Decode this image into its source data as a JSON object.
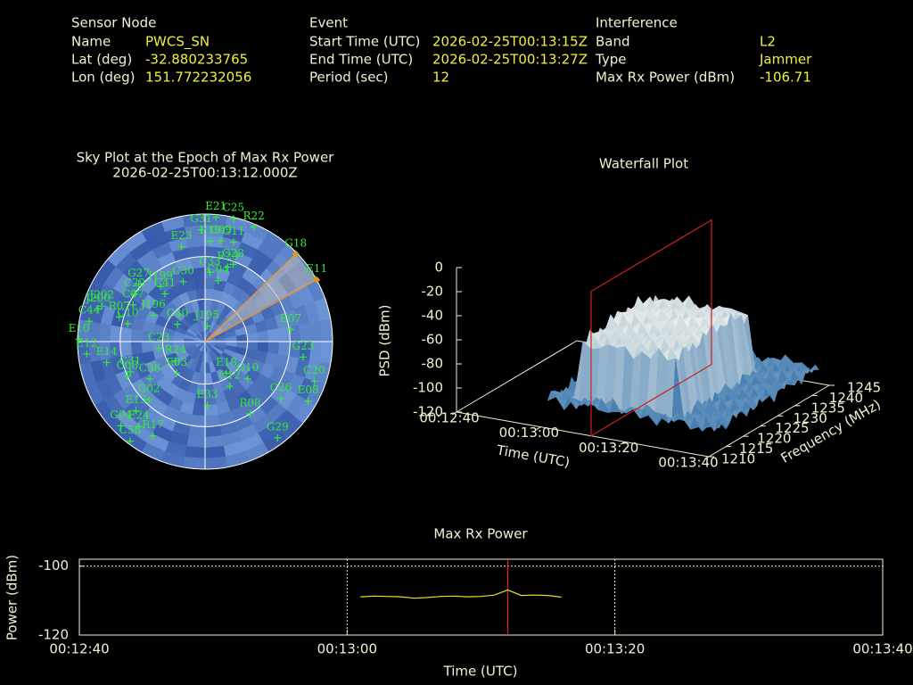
{
  "header": {
    "sensor": {
      "title": "Sensor Node",
      "rows": [
        {
          "label": "Name",
          "value": "PWCS_SN"
        },
        {
          "label": "Lat (deg)",
          "value": "-32.880233765"
        },
        {
          "label": "Lon (deg)",
          "value": "151.772232056"
        }
      ]
    },
    "event": {
      "title": "Event",
      "rows": [
        {
          "label": "Start Time (UTC)",
          "value": "2026-02-25T00:13:15Z"
        },
        {
          "label": "End Time (UTC)",
          "value": "2026-02-25T00:13:27Z"
        },
        {
          "label": "Period (sec)",
          "value": "12"
        }
      ]
    },
    "interference": {
      "title": "Interference",
      "rows": [
        {
          "label": "Band",
          "value": "L2"
        },
        {
          "label": "Type",
          "value": "Jammer"
        },
        {
          "label": "Max Rx Power (dBm)",
          "value": "-106.71"
        }
      ]
    }
  },
  "chart_data": [
    {
      "type": "skyplot",
      "title": "Sky Plot at the Epoch of Max Rx Power",
      "subtitle": "2026-02-25T00:13:12.000Z",
      "satellites": [
        {
          "name": "E21",
          "az": 5,
          "el": 2
        },
        {
          "name": "C25",
          "az": 13,
          "el": 1
        },
        {
          "name": "R22",
          "az": 23,
          "el": 2
        },
        {
          "name": "G31",
          "az": 358,
          "el": 11
        },
        {
          "name": "E19",
          "az": 3,
          "el": 19
        },
        {
          "name": "C09",
          "az": 9,
          "el": 18
        },
        {
          "name": "G11",
          "az": 16,
          "el": 17
        },
        {
          "name": "E23",
          "az": 346,
          "el": 21
        },
        {
          "name": "G18",
          "az": 46,
          "el": 1,
          "highlight": true
        },
        {
          "name": "G28",
          "az": 20,
          "el": 32
        },
        {
          "name": "C33",
          "az": 4,
          "el": 41
        },
        {
          "name": "R23",
          "az": 17,
          "el": 35
        },
        {
          "name": "C04",
          "az": 12,
          "el": 46
        },
        {
          "name": "C30",
          "az": 340,
          "el": 45
        },
        {
          "name": "G27",
          "az": 311,
          "el": 28
        },
        {
          "name": "E11",
          "az": 61,
          "el": 0,
          "highlight": true
        },
        {
          "name": "C29",
          "az": 304,
          "el": 30
        },
        {
          "name": "C41",
          "az": 320,
          "el": 46
        },
        {
          "name": "J199",
          "az": 321,
          "el": 40
        },
        {
          "name": "C07",
          "az": 297,
          "el": 33
        },
        {
          "name": "J200",
          "az": 287,
          "el": 11
        },
        {
          "name": "J202",
          "az": 289,
          "el": 13
        },
        {
          "name": "R07",
          "az": 286,
          "el": 27
        },
        {
          "name": "C10",
          "az": 283,
          "el": 34
        },
        {
          "name": "C44",
          "az": 280,
          "el": 7
        },
        {
          "name": "J196",
          "az": 297,
          "el": 49
        },
        {
          "name": "C40",
          "az": 302,
          "el": 67
        },
        {
          "name": "J195",
          "az": 7,
          "el": 79
        },
        {
          "name": "E10",
          "az": 271,
          "el": 1
        },
        {
          "name": "E07",
          "az": 82,
          "el": 29
        },
        {
          "name": "E12",
          "az": 264,
          "el": 6
        },
        {
          "name": "C23",
          "az": 262,
          "el": 57
        },
        {
          "name": "R24",
          "az": 237,
          "el": 65
        },
        {
          "name": "G23",
          "az": 99,
          "el": 20
        },
        {
          "name": "E14",
          "az": 258,
          "el": 19
        },
        {
          "name": "C31",
          "az": 248,
          "el": 33
        },
        {
          "name": "E33",
          "az": 178,
          "el": 45
        },
        {
          "name": "E18",
          "az": 146,
          "el": 63
        },
        {
          "name": "G10",
          "az": 131,
          "el": 50
        },
        {
          "name": "C12",
          "az": 151,
          "el": 54
        },
        {
          "name": "C08",
          "az": 246,
          "el": 30
        },
        {
          "name": "C38",
          "az": 236,
          "el": 43
        },
        {
          "name": "E03",
          "az": 222,
          "el": 60
        },
        {
          "name": "G02",
          "az": 224,
          "el": 33
        },
        {
          "name": "C20",
          "az": 110,
          "el": 8
        },
        {
          "name": "E08",
          "az": 120,
          "el": 6
        },
        {
          "name": "C26",
          "az": 127,
          "el": 23
        },
        {
          "name": "E13",
          "az": 225,
          "el": 21
        },
        {
          "name": "R08",
          "az": 148,
          "el": 30
        },
        {
          "name": "G04",
          "az": 225,
          "el": 6
        },
        {
          "name": "E24",
          "az": 218,
          "el": 14
        },
        {
          "name": "R17",
          "az": 209,
          "el": 14
        },
        {
          "name": "C58",
          "az": 217,
          "el": 2
        },
        {
          "name": "G29",
          "az": 143,
          "el": 5
        }
      ]
    },
    {
      "type": "surface3d",
      "title": "Waterfall Plot",
      "xlabel": "Time (UTC)",
      "ylabel": "Frequency (MHz)",
      "zlabel": "PSD (dBm)",
      "xlim": [
        "00:12:40",
        "00:13:40"
      ],
      "xticks": [
        "00:12:40",
        "00:13:00",
        "00:13:20",
        "00:13:40"
      ],
      "ylim": [
        1210,
        1245
      ],
      "yticks": [
        1210,
        1215,
        1220,
        1225,
        1230,
        1235,
        1240,
        1245
      ],
      "zlim": [
        -120,
        0
      ],
      "zticks": [
        0,
        -20,
        -40,
        -60,
        -80,
        -100,
        -120
      ],
      "epoch": "00:13:12",
      "color": "#c8e0f0"
    },
    {
      "type": "line",
      "title": "Max Rx Power",
      "xlabel": "Time (UTC)",
      "ylabel": "Power (dBm)",
      "xlim": [
        "00:12:40",
        "00:13:40"
      ],
      "xticks": [
        "00:12:40",
        "00:13:00",
        "00:13:20",
        "00:13:40"
      ],
      "ylim": [
        -120,
        -98
      ],
      "yticks": [
        -100,
        -120
      ],
      "grid": true,
      "epoch": "00:13:12",
      "color": "#e8e020",
      "epoch_color": "#e02020",
      "x": [
        "00:13:01",
        "00:13:02",
        "00:13:03",
        "00:13:04",
        "00:13:05",
        "00:13:06",
        "00:13:07",
        "00:13:08",
        "00:13:09",
        "00:13:10",
        "00:13:11",
        "00:13:12",
        "00:13:13",
        "00:13:14",
        "00:13:15",
        "00:13:16"
      ],
      "values": [
        -108.9,
        -108.7,
        -108.8,
        -108.9,
        -109.3,
        -109.1,
        -108.8,
        -108.7,
        -108.9,
        -108.8,
        -108.4,
        -106.9,
        -108.5,
        -108.4,
        -108.5,
        -109.0
      ]
    }
  ]
}
